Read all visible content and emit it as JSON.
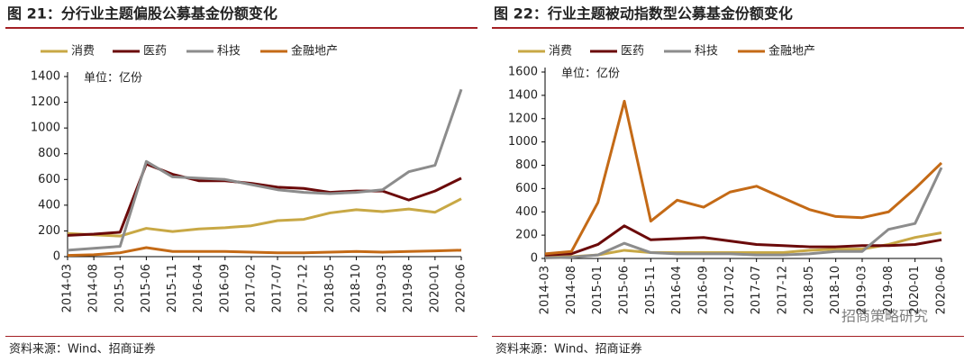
{
  "chart_data": [
    {
      "type": "line",
      "title": "图 21：分行业主题偏股公募基金份额变化",
      "annotation": "单位：亿份",
      "source": "资料来源：Wind、招商证券",
      "categories": [
        "2014-03",
        "2014-08",
        "2015-01",
        "2015-06",
        "2015-11",
        "2016-04",
        "2016-09",
        "2017-02",
        "2017-07",
        "2017-12",
        "2018-05",
        "2018-10",
        "2019-03",
        "2019-08",
        "2020-01",
        "2020-06"
      ],
      "series": [
        {
          "name": "消费",
          "color": "#c8a845",
          "values": [
            180,
            170,
            160,
            220,
            195,
            215,
            225,
            240,
            280,
            290,
            340,
            365,
            350,
            370,
            345,
            450
          ]
        },
        {
          "name": "医药",
          "color": "#6b0a0a",
          "values": [
            165,
            175,
            190,
            720,
            640,
            590,
            590,
            570,
            540,
            530,
            500,
            510,
            510,
            440,
            510,
            610
          ]
        },
        {
          "name": "科技",
          "color": "#8c8c8c",
          "values": [
            50,
            65,
            80,
            740,
            620,
            610,
            600,
            560,
            520,
            500,
            490,
            500,
            520,
            660,
            710,
            1300
          ]
        },
        {
          "name": "金融地产",
          "color": "#c46a16",
          "values": [
            10,
            15,
            30,
            70,
            40,
            40,
            40,
            35,
            30,
            30,
            35,
            40,
            35,
            40,
            45,
            50
          ]
        }
      ],
      "ylim": [
        0,
        1400
      ],
      "yticks": [
        0,
        200,
        400,
        600,
        800,
        1000,
        1200,
        1400
      ],
      "legend": "top"
    },
    {
      "type": "line",
      "title": "图 22：行业主题被动指数型公募基金份额变化",
      "annotation": "单位：亿份",
      "source": "资料来源：Wind、招商证券",
      "watermark": "招商策略研究",
      "categories": [
        "2014-03",
        "2014-08",
        "2015-01",
        "2015-06",
        "2015-11",
        "2016-04",
        "2016-09",
        "2017-02",
        "2017-07",
        "2017-12",
        "2018-05",
        "2018-10",
        "2019-03",
        "2019-08",
        "2020-01",
        "2020-06"
      ],
      "series": [
        {
          "name": "消费",
          "color": "#c8a845",
          "values": [
            10,
            15,
            30,
            70,
            50,
            50,
            50,
            50,
            50,
            50,
            70,
            80,
            80,
            120,
            180,
            220
          ]
        },
        {
          "name": "医药",
          "color": "#6b0a0a",
          "values": [
            30,
            40,
            120,
            280,
            160,
            170,
            180,
            150,
            120,
            110,
            100,
            100,
            110,
            110,
            120,
            160
          ]
        },
        {
          "name": "科技",
          "color": "#8c8c8c",
          "values": [
            5,
            10,
            30,
            130,
            50,
            40,
            40,
            40,
            30,
            30,
            40,
            60,
            60,
            250,
            300,
            780
          ]
        },
        {
          "name": "金融地产",
          "color": "#c46a16",
          "values": [
            40,
            60,
            480,
            1350,
            320,
            500,
            440,
            570,
            620,
            520,
            420,
            360,
            350,
            400,
            600,
            820
          ]
        }
      ],
      "ylim": [
        0,
        1600
      ],
      "yticks": [
        0,
        200,
        400,
        600,
        800,
        1000,
        1200,
        1400,
        1600
      ],
      "legend": "top"
    }
  ]
}
